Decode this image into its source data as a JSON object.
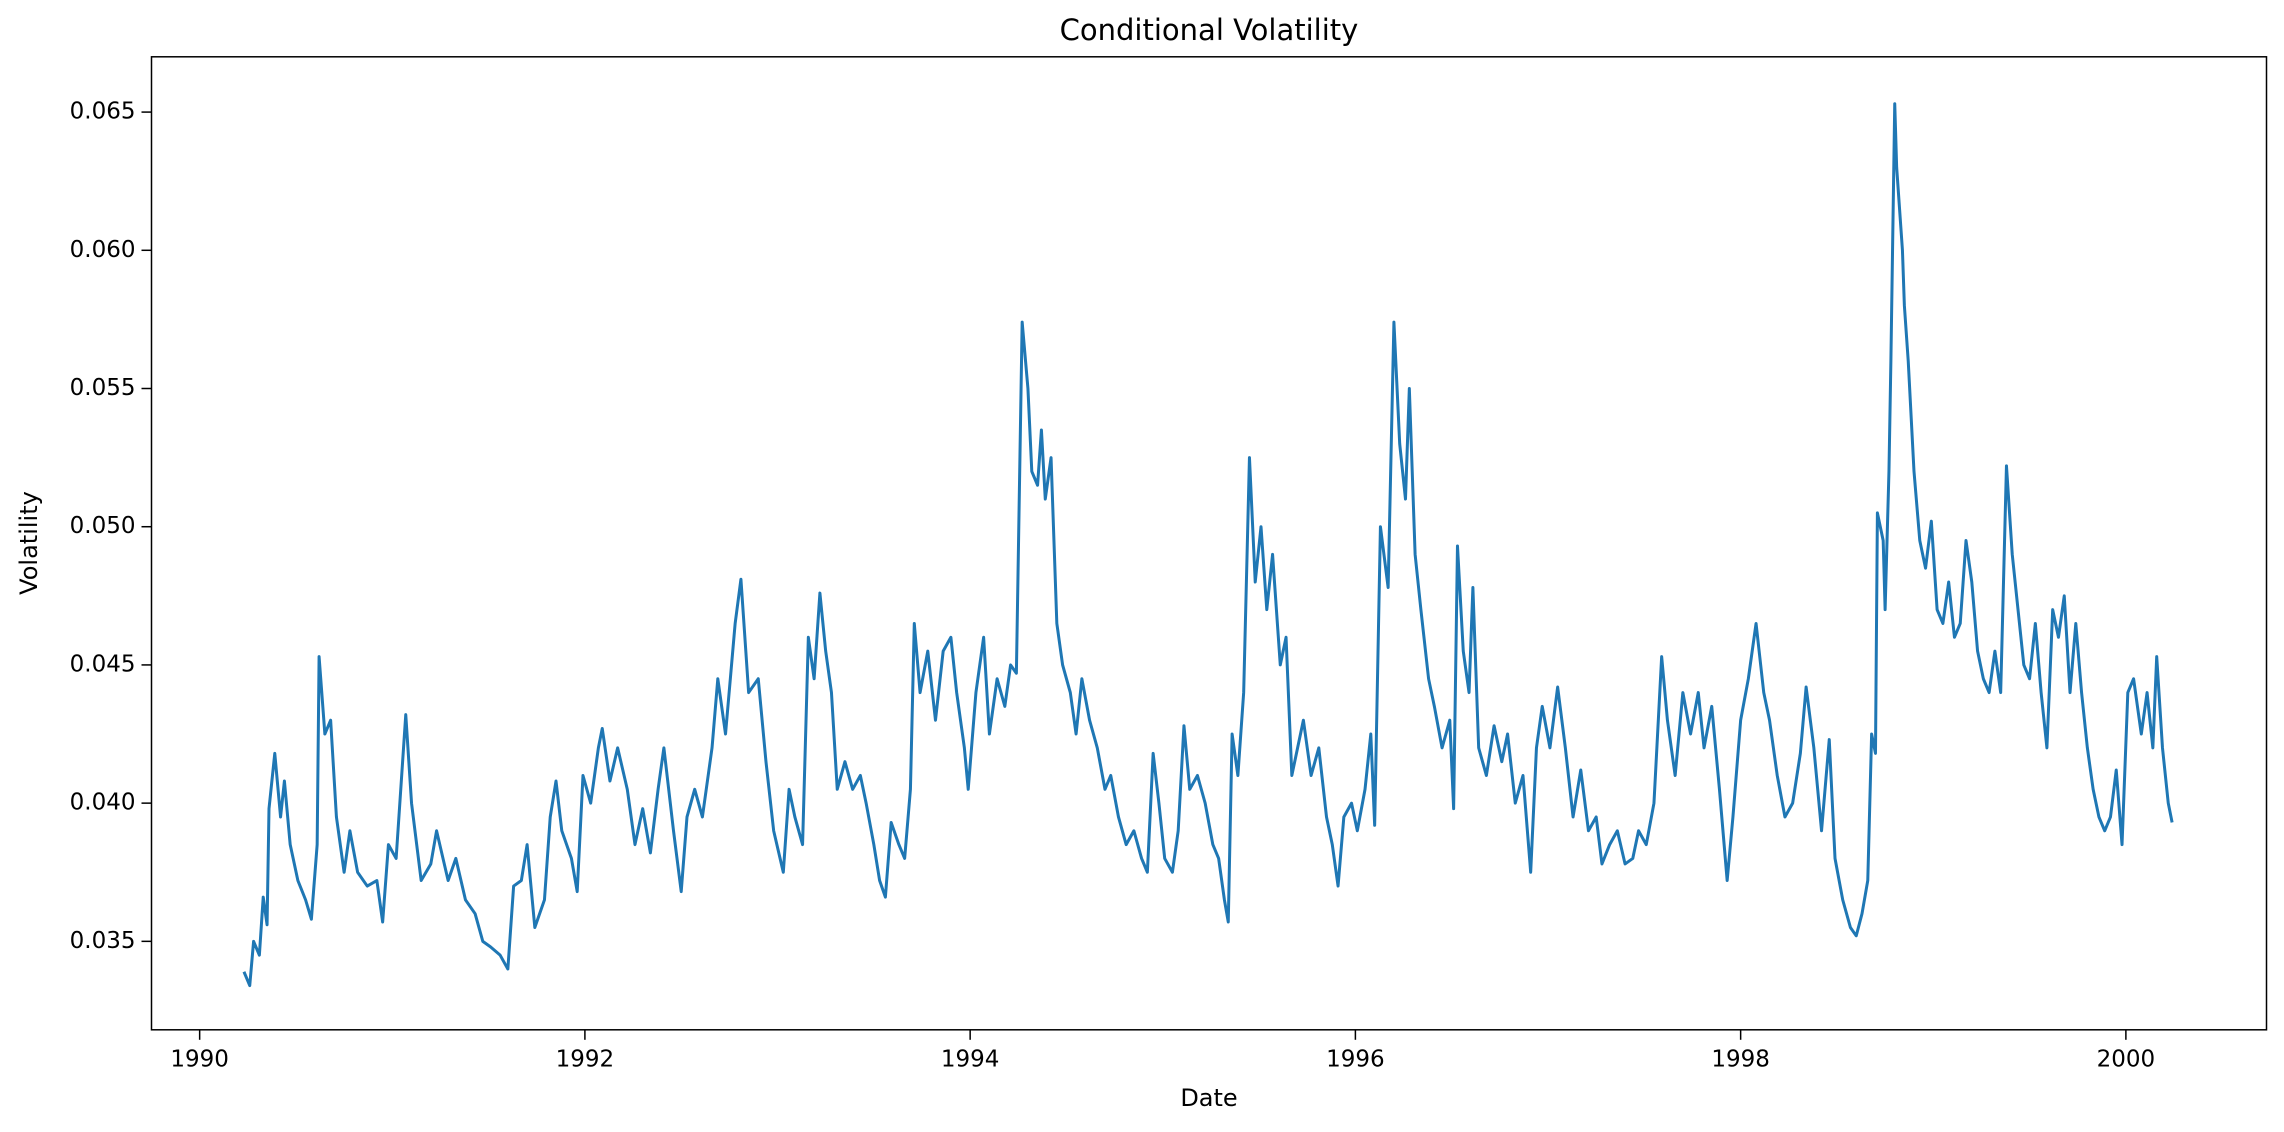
{
  "chart_data": {
    "type": "line",
    "title": "Conditional Volatility",
    "xlabel": "Date",
    "ylabel": "Volatility",
    "color": "#1f77b4",
    "xlim": [
      1989.75,
      2000.73
    ],
    "ylim": [
      0.0318,
      0.067
    ],
    "xticks": [
      1990,
      1992,
      1994,
      1996,
      1998,
      2000
    ],
    "yticks": [
      0.035,
      {
        "value": 0.04,
        "label": "0.040"
      },
      0.045,
      {
        "value": 0.05,
        "label": "0.050"
      },
      0.055,
      {
        "value": 0.06,
        "label": "0.060"
      },
      0.065
    ],
    "x": [
      1990.23,
      1990.26,
      1990.28,
      1990.31,
      1990.33,
      1990.35,
      1990.36,
      1990.39,
      1990.42,
      1990.44,
      1990.47,
      1990.51,
      1990.55,
      1990.58,
      1990.61,
      1990.62,
      1990.65,
      1990.68,
      1990.71,
      1990.75,
      1990.78,
      1990.82,
      1990.87,
      1990.92,
      1990.95,
      1990.98,
      1991.02,
      1991.07,
      1991.1,
      1991.15,
      1991.2,
      1991.23,
      1991.29,
      1991.33,
      1991.38,
      1991.43,
      1991.47,
      1991.51,
      1991.56,
      1991.6,
      1991.63,
      1991.67,
      1991.7,
      1991.74,
      1991.79,
      1991.82,
      1991.85,
      1991.88,
      1991.93,
      1991.96,
      1991.99,
      1992.03,
      1992.07,
      1992.09,
      1992.13,
      1992.17,
      1992.22,
      1992.26,
      1992.3,
      1992.34,
      1992.38,
      1992.41,
      1992.46,
      1992.5,
      1992.53,
      1992.57,
      1992.61,
      1992.66,
      1992.69,
      1992.73,
      1992.78,
      1992.81,
      1992.85,
      1992.9,
      1992.94,
      1992.98,
      1993.03,
      1993.06,
      1993.09,
      1993.13,
      1993.16,
      1993.19,
      1993.22,
      1993.25,
      1993.28,
      1993.31,
      1993.35,
      1993.39,
      1993.43,
      1993.46,
      1993.5,
      1993.53,
      1993.56,
      1993.59,
      1993.63,
      1993.66,
      1993.69,
      1993.71,
      1993.74,
      1993.78,
      1993.82,
      1993.86,
      1993.9,
      1993.93,
      1993.97,
      1993.99,
      1994.03,
      1994.07,
      1994.1,
      1994.14,
      1994.18,
      1994.21,
      1994.24,
      1994.27,
      1994.3,
      1994.32,
      1994.35,
      1994.37,
      1994.39,
      1994.42,
      1994.45,
      1994.48,
      1994.52,
      1994.55,
      1994.58,
      1994.62,
      1994.66,
      1994.7,
      1994.73,
      1994.77,
      1994.81,
      1994.85,
      1994.89,
      1994.92,
      1994.95,
      1994.98,
      1995.01,
      1995.05,
      1995.08,
      1995.11,
      1995.14,
      1995.18,
      1995.22,
      1995.26,
      1995.29,
      1995.32,
      1995.34,
      1995.36,
      1995.39,
      1995.42,
      1995.45,
      1995.48,
      1995.51,
      1995.54,
      1995.57,
      1995.61,
      1995.64,
      1995.67,
      1995.7,
      1995.73,
      1995.77,
      1995.81,
      1995.85,
      1995.88,
      1995.91,
      1995.94,
      1995.98,
      1996.01,
      1996.05,
      1996.08,
      1996.1,
      1996.13,
      1996.17,
      1996.2,
      1996.23,
      1996.26,
      1996.28,
      1996.31,
      1996.34,
      1996.38,
      1996.41,
      1996.45,
      1996.49,
      1996.51,
      1996.53,
      1996.56,
      1996.59,
      1996.61,
      1996.64,
      1996.68,
      1996.72,
      1996.76,
      1996.79,
      1996.83,
      1996.87,
      1996.91,
      1996.94,
      1996.97,
      1997.01,
      1997.05,
      1997.09,
      1997.13,
      1997.17,
      1997.21,
      1997.25,
      1997.28,
      1997.32,
      1997.36,
      1997.4,
      1997.44,
      1997.47,
      1997.51,
      1997.55,
      1997.59,
      1997.62,
      1997.66,
      1997.7,
      1997.74,
      1997.78,
      1997.81,
      1997.85,
      1997.89,
      1997.93,
      1997.96,
      1998.0,
      1998.04,
      1998.08,
      1998.12,
      1998.15,
      1998.19,
      1998.23,
      1998.27,
      1998.31,
      1998.34,
      1998.38,
      1998.42,
      1998.46,
      1998.49,
      1998.53,
      1998.57,
      1998.6,
      1998.63,
      1998.66,
      1998.68,
      1998.7,
      1998.71,
      1998.74,
      1998.75,
      1998.77,
      1998.78,
      1998.8,
      1998.81,
      1998.84,
      1998.85,
      1998.87,
      1998.9,
      1998.93,
      1998.96,
      1998.99,
      1999.02,
      1999.05,
      1999.08,
      1999.11,
      1999.14,
      1999.17,
      1999.2,
      1999.23,
      1999.26,
      1999.29,
      1999.32,
      1999.35,
      1999.38,
      1999.41,
      1999.44,
      1999.47,
      1999.5,
      1999.53,
      1999.56,
      1999.59,
      1999.62,
      1999.65,
      1999.68,
      1999.71,
      1999.74,
      1999.77,
      1999.8,
      1999.83,
      1999.86,
      1999.89,
      1999.92,
      1999.95,
      1999.98,
      2000.01,
      2000.04,
      2000.08,
      2000.11,
      2000.14,
      2000.16,
      2000.19,
      2000.22,
      2000.24
    ],
    "values": [
      0.0339,
      0.0334,
      0.035,
      0.0345,
      0.0366,
      0.0356,
      0.0398,
      0.0418,
      0.0395,
      0.0408,
      0.0385,
      0.0372,
      0.0365,
      0.0358,
      0.0385,
      0.0453,
      0.0425,
      0.043,
      0.0395,
      0.0375,
      0.039,
      0.0375,
      0.037,
      0.0372,
      0.0357,
      0.0385,
      0.038,
      0.0432,
      0.04,
      0.0372,
      0.0378,
      0.039,
      0.0372,
      0.038,
      0.0365,
      0.036,
      0.035,
      0.0348,
      0.0345,
      0.034,
      0.037,
      0.0372,
      0.0385,
      0.0355,
      0.0365,
      0.0395,
      0.0408,
      0.039,
      0.038,
      0.0368,
      0.041,
      0.04,
      0.042,
      0.0427,
      0.0408,
      0.042,
      0.0405,
      0.0385,
      0.0398,
      0.0382,
      0.0405,
      0.042,
      0.039,
      0.0368,
      0.0395,
      0.0405,
      0.0395,
      0.042,
      0.0445,
      0.0425,
      0.0465,
      0.0481,
      0.044,
      0.0445,
      0.0415,
      0.039,
      0.0375,
      0.0405,
      0.0395,
      0.0385,
      0.046,
      0.0445,
      0.0476,
      0.0455,
      0.044,
      0.0405,
      0.0415,
      0.0405,
      0.041,
      0.04,
      0.0385,
      0.0372,
      0.0366,
      0.0393,
      0.0385,
      0.038,
      0.0405,
      0.0465,
      0.044,
      0.0455,
      0.043,
      0.0455,
      0.046,
      0.044,
      0.042,
      0.0405,
      0.044,
      0.046,
      0.0425,
      0.0445,
      0.0435,
      0.045,
      0.0447,
      0.0574,
      0.055,
      0.052,
      0.0515,
      0.0535,
      0.051,
      0.0525,
      0.0465,
      0.045,
      0.044,
      0.0425,
      0.0445,
      0.043,
      0.042,
      0.0405,
      0.041,
      0.0395,
      0.0385,
      0.039,
      0.038,
      0.0375,
      0.0418,
      0.04,
      0.038,
      0.0375,
      0.039,
      0.0428,
      0.0405,
      0.041,
      0.04,
      0.0385,
      0.038,
      0.0365,
      0.0357,
      0.0425,
      0.041,
      0.044,
      0.0525,
      0.048,
      0.05,
      0.047,
      0.049,
      0.045,
      0.046,
      0.041,
      0.042,
      0.043,
      0.041,
      0.042,
      0.0395,
      0.0385,
      0.037,
      0.0395,
      0.04,
      0.039,
      0.0405,
      0.0425,
      0.0392,
      0.05,
      0.0478,
      0.0574,
      0.053,
      0.051,
      0.055,
      0.049,
      0.047,
      0.0445,
      0.0435,
      0.042,
      0.043,
      0.0398,
      0.0493,
      0.0455,
      0.044,
      0.0478,
      0.042,
      0.041,
      0.0428,
      0.0415,
      0.0425,
      0.04,
      0.041,
      0.0375,
      0.042,
      0.0435,
      0.042,
      0.0442,
      0.042,
      0.0395,
      0.0412,
      0.039,
      0.0395,
      0.0378,
      0.0385,
      0.039,
      0.0378,
      0.038,
      0.039,
      0.0385,
      0.04,
      0.0453,
      0.043,
      0.041,
      0.044,
      0.0425,
      0.044,
      0.042,
      0.0435,
      0.0405,
      0.0372,
      0.0395,
      0.043,
      0.0445,
      0.0465,
      0.044,
      0.043,
      0.041,
      0.0395,
      0.04,
      0.0418,
      0.0442,
      0.042,
      0.039,
      0.0423,
      0.038,
      0.0365,
      0.0355,
      0.0352,
      0.036,
      0.0372,
      0.0425,
      0.0418,
      0.0505,
      0.0495,
      0.047,
      0.052,
      0.056,
      0.0653,
      0.063,
      0.06,
      0.058,
      0.056,
      0.052,
      0.0495,
      0.0485,
      0.0502,
      0.047,
      0.0465,
      0.048,
      0.046,
      0.0465,
      0.0495,
      0.048,
      0.0455,
      0.0445,
      0.044,
      0.0455,
      0.044,
      0.0522,
      0.049,
      0.047,
      0.045,
      0.0445,
      0.0465,
      0.044,
      0.042,
      0.047,
      0.046,
      0.0475,
      0.044,
      0.0465,
      0.044,
      0.042,
      0.0405,
      0.0395,
      0.039,
      0.0395,
      0.0412,
      0.0385,
      0.044,
      0.0445,
      0.0425,
      0.044,
      0.042,
      0.0453,
      0.042,
      0.04,
      0.0393
    ]
  }
}
